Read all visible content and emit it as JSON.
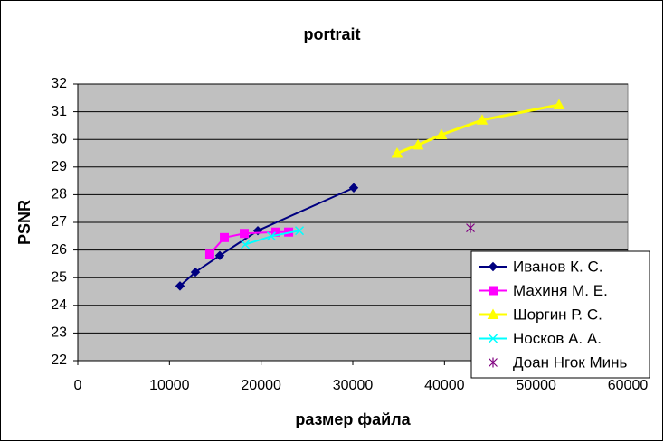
{
  "chart_data": {
    "type": "scatter",
    "title": "portrait",
    "x_label": "размер файла",
    "y_label": "PSNR",
    "xlim": [
      0,
      60000
    ],
    "xticks": [
      0,
      10000,
      20000,
      30000,
      40000,
      50000,
      60000
    ],
    "ylim": [
      22,
      32
    ],
    "yticks": [
      22,
      23,
      24,
      25,
      26,
      27,
      28,
      29,
      30,
      31,
      32
    ],
    "grid": true,
    "legend": "lower right",
    "series": [
      {
        "name": "Иванов К. С.",
        "color": "#000080",
        "marker": "diamond",
        "x": [
          11150,
          12830,
          15490,
          19640,
          30100
        ],
        "values": [
          24.7,
          25.2,
          25.8,
          26.7,
          28.25
        ]
      },
      {
        "name": "Махиня М. Е.",
        "color": "#ff00ff",
        "marker": "square",
        "x": [
          14400,
          15990,
          18160,
          21610,
          23000
        ],
        "values": [
          25.85,
          26.45,
          26.6,
          26.65,
          26.65
        ]
      },
      {
        "name": "Шоргин Р. С.",
        "color": "#ffff00",
        "marker": "triangle",
        "x": [
          34830,
          37110,
          39670,
          44110,
          52500
        ],
        "values": [
          29.5,
          29.8,
          30.17,
          30.7,
          31.25
        ]
      },
      {
        "name": "Носков А. А.",
        "color": "#00ffff",
        "marker": "x",
        "x": [
          18260,
          21120,
          24180
        ],
        "values": [
          26.2,
          26.5,
          26.7
        ]
      },
      {
        "name": "Доан Нгок Минь",
        "color": "#800080",
        "marker": "star",
        "x": [
          42830
        ],
        "values": [
          26.8
        ]
      }
    ]
  }
}
